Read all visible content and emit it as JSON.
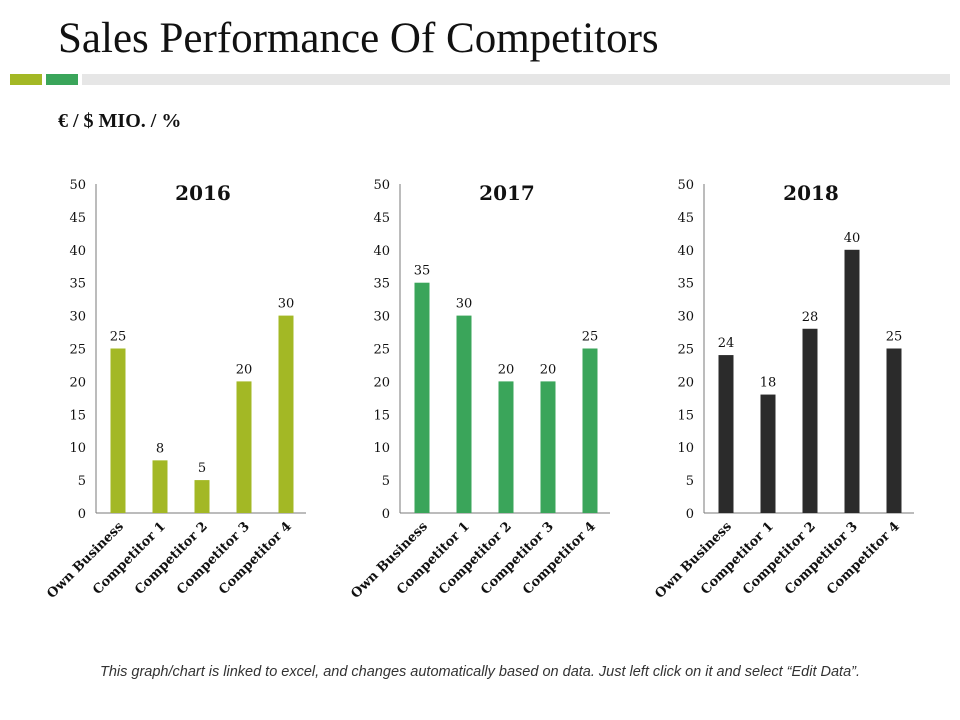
{
  "header": {
    "title": "Sales Performance Of Competitors",
    "units": "€ / $ MIO. / %"
  },
  "colors": {
    "accent_a": "#a3b825",
    "accent_b": "#3aa55a",
    "track": "#e6e6e6"
  },
  "chart_data": [
    {
      "type": "bar",
      "title": "2016",
      "categories": [
        "Own Business",
        "Competitor 1",
        "Competitor 2",
        "Competitor 3",
        "Competitor 4"
      ],
      "values": [
        25,
        8,
        5,
        20,
        30
      ],
      "ylim": [
        0,
        50
      ],
      "yticks": [
        0,
        5,
        10,
        15,
        20,
        25,
        30,
        35,
        40,
        45,
        50
      ],
      "color": "#a3b825",
      "xlabel": "",
      "ylabel": ""
    },
    {
      "type": "bar",
      "title": "2017",
      "categories": [
        "Own Business",
        "Competitor 1",
        "Competitor 2",
        "Competitor 3",
        "Competitor 4"
      ],
      "values": [
        35,
        30,
        20,
        20,
        25
      ],
      "ylim": [
        0,
        50
      ],
      "yticks": [
        0,
        5,
        10,
        15,
        20,
        25,
        30,
        35,
        40,
        45,
        50
      ],
      "color": "#3aa55a",
      "xlabel": "",
      "ylabel": ""
    },
    {
      "type": "bar",
      "title": "2018",
      "categories": [
        "Own Business",
        "Competitor 1",
        "Competitor 2",
        "Competitor 3",
        "Competitor 4"
      ],
      "values": [
        24,
        18,
        28,
        40,
        25
      ],
      "ylim": [
        0,
        50
      ],
      "yticks": [
        0,
        5,
        10,
        15,
        20,
        25,
        30,
        35,
        40,
        45,
        50
      ],
      "color": "#2b2b2b",
      "xlabel": "",
      "ylabel": ""
    }
  ],
  "footer": {
    "note": "This graph/chart is linked to excel, and changes automatically based on data. Just left click on it and select “Edit Data”."
  }
}
